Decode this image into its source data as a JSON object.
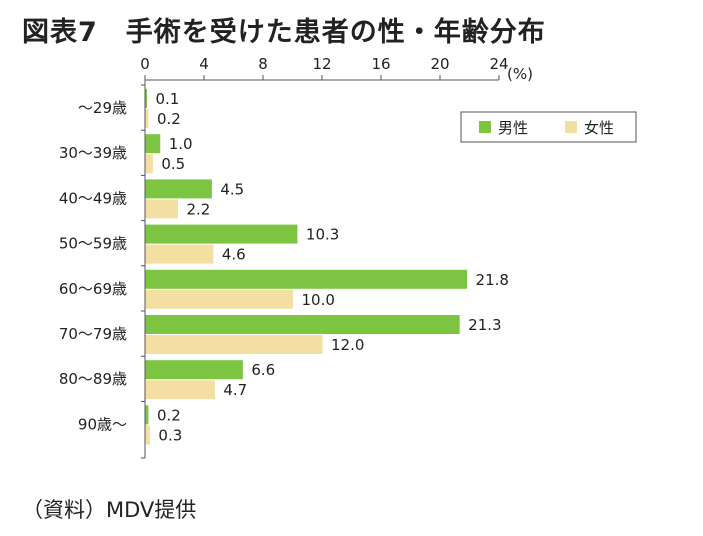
{
  "title": "図表7　手術を受けた患者の性・年齢分布",
  "source": "（資料）MDV提供",
  "colors": {
    "male": "#7DC443",
    "female": "#F3DFA2",
    "axis": "#555555",
    "grid": "#cccccc"
  },
  "chart_data": {
    "type": "bar",
    "orientation": "horizontal",
    "title": "図表7　手術を受けた患者の性・年齢分布",
    "unit": "(%)",
    "xlim": [
      0,
      24
    ],
    "xticks": [
      "0",
      "4",
      "8",
      "12",
      "16",
      "20",
      "24"
    ],
    "tick_values": [
      0,
      4,
      8,
      12,
      16,
      20,
      24
    ],
    "x_axis_position": "top",
    "legend_position": "top-right",
    "grid": false,
    "categories": [
      "～29歳",
      "30～39歳",
      "40～49歳",
      "50～59歳",
      "60～69歳",
      "70～79歳",
      "80～89歳",
      "90歳～"
    ],
    "series": [
      {
        "name": "男性",
        "values": [
          0.1,
          1.0,
          4.5,
          10.3,
          21.8,
          21.3,
          6.6,
          0.2
        ],
        "labels": [
          "0.1",
          "1.0",
          "4.5",
          "10.3",
          "21.8",
          "21.3",
          "6.6",
          "0.2"
        ]
      },
      {
        "name": "女性",
        "values": [
          0.2,
          0.5,
          2.2,
          4.6,
          10.0,
          12.0,
          4.7,
          0.3
        ],
        "labels": [
          "0.2",
          "0.5",
          "2.2",
          "4.6",
          "10.0",
          "12.0",
          "4.7",
          "0.3"
        ]
      }
    ]
  }
}
